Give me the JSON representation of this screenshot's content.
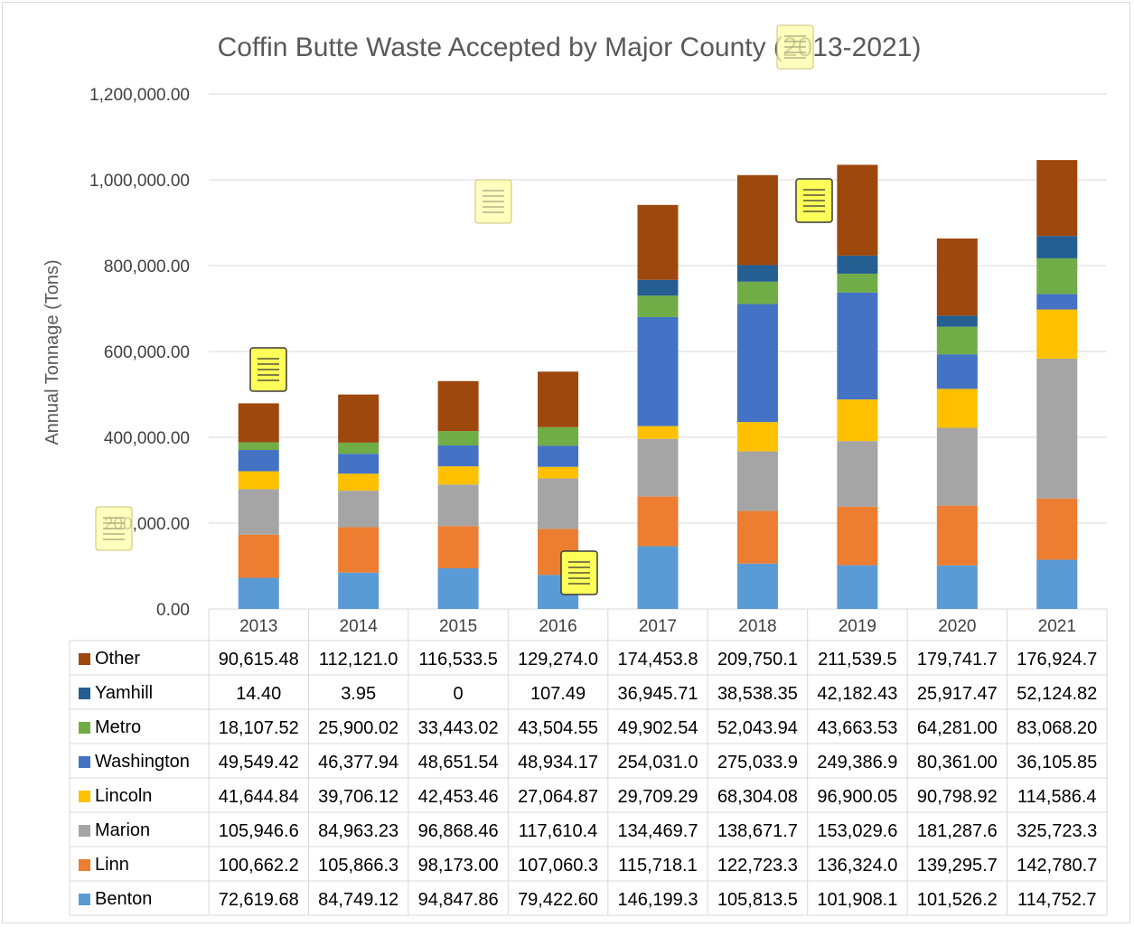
{
  "chart_data": {
    "type": "bar",
    "stacked": true,
    "title": "Coffin Butte Waste Accepted by Major County (2013-2021)",
    "ylabel": "Annual Tonnage (Tons)",
    "xlabel": "",
    "ylim": [
      0,
      1200000
    ],
    "yticks": [
      0,
      200000,
      400000,
      600000,
      800000,
      1000000,
      1200000
    ],
    "ytick_labels": [
      "0.00",
      "200,000.00",
      "400,000.00",
      "600,000.00",
      "800,000.00",
      "1,000,000.00",
      "1,200,000.00"
    ],
    "grid": true,
    "legend": "data-table",
    "categories": [
      "2013",
      "2014",
      "2015",
      "2016",
      "2017",
      "2018",
      "2019",
      "2020",
      "2021"
    ],
    "series": [
      {
        "name": "Benton",
        "color": "#5b9bd5",
        "values": [
          72619.68,
          84749.12,
          94847.86,
          79422.6,
          146199.3,
          105813.5,
          101908.1,
          101526.2,
          114752.7
        ],
        "labels": [
          "72,619.68",
          "84,749.12",
          "94,847.86",
          "79,422.60",
          "146,199.3",
          "105,813.5",
          "101,908.1",
          "101,526.2",
          "114,752.7"
        ]
      },
      {
        "name": "Linn",
        "color": "#ed7d31",
        "values": [
          100662.2,
          105866.3,
          98173.0,
          107060.3,
          115718.1,
          122723.3,
          136324.0,
          139295.7,
          142780.7
        ],
        "labels": [
          "100,662.2",
          "105,866.3",
          "98,173.00",
          "107,060.3",
          "115,718.1",
          "122,723.3",
          "136,324.0",
          "139,295.7",
          "142,780.7"
        ]
      },
      {
        "name": "Marion",
        "color": "#a5a5a5",
        "values": [
          105946.6,
          84963.23,
          96868.46,
          117610.4,
          134469.7,
          138671.7,
          153029.6,
          181287.6,
          325723.3
        ],
        "labels": [
          "105,946.6",
          "84,963.23",
          "96,868.46",
          "117,610.4",
          "134,469.7",
          "138,671.7",
          "153,029.6",
          "181,287.6",
          "325,723.3"
        ]
      },
      {
        "name": "Lincoln",
        "color": "#ffc000",
        "values": [
          41644.84,
          39706.12,
          42453.46,
          27064.87,
          29709.29,
          68304.08,
          96900.05,
          90798.92,
          114586.4
        ],
        "labels": [
          "41,644.84",
          "39,706.12",
          "42,453.46",
          "27,064.87",
          "29,709.29",
          "68,304.08",
          "96,900.05",
          "90,798.92",
          "114,586.4"
        ]
      },
      {
        "name": "Washington",
        "color": "#4472c4",
        "values": [
          49549.42,
          46377.94,
          48651.54,
          48934.17,
          254031.0,
          275033.9,
          249386.9,
          80361.0,
          36105.85
        ],
        "labels": [
          "49,549.42",
          "46,377.94",
          "48,651.54",
          "48,934.17",
          "254,031.0",
          "275,033.9",
          "249,386.9",
          "80,361.00",
          "36,105.85"
        ]
      },
      {
        "name": "Metro",
        "color": "#70ad47",
        "values": [
          18107.52,
          25900.02,
          33443.02,
          43504.55,
          49902.54,
          52043.94,
          43663.53,
          64281.0,
          83068.2
        ],
        "labels": [
          "18,107.52",
          "25,900.02",
          "33,443.02",
          "43,504.55",
          "49,902.54",
          "52,043.94",
          "43,663.53",
          "64,281.00",
          "83,068.20"
        ]
      },
      {
        "name": "Yamhill",
        "color": "#255e91",
        "values": [
          14.4,
          3.95,
          0,
          107.49,
          36945.71,
          38538.35,
          42182.43,
          25917.47,
          52124.82
        ],
        "labels": [
          "14.40",
          "3.95",
          "0",
          "107.49",
          "36,945.71",
          "38,538.35",
          "42,182.43",
          "25,917.47",
          "52,124.82"
        ]
      },
      {
        "name": "Other",
        "color": "#9e480e",
        "values": [
          90615.48,
          112121.0,
          116533.5,
          129274.0,
          174453.8,
          209750.1,
          211539.5,
          179741.7,
          176924.7
        ],
        "labels": [
          "90,615.48",
          "112,121.0",
          "116,533.5",
          "129,274.0",
          "174,453.8",
          "209,750.1",
          "211,539.5",
          "179,741.7",
          "176,924.7"
        ]
      }
    ],
    "table_row_order": [
      "Other",
      "Yamhill",
      "Metro",
      "Washington",
      "Lincoln",
      "Marion",
      "Linn",
      "Benton"
    ],
    "gridline_color": "#d9d9d9",
    "note_icons": [
      {
        "name": "comment-note-icon",
        "highlighted": true
      },
      {
        "name": "comment-note-icon",
        "highlighted": false
      },
      {
        "name": "comment-note-icon",
        "highlighted": true
      },
      {
        "name": "comment-note-icon",
        "highlighted": false
      },
      {
        "name": "comment-note-icon",
        "highlighted": false
      },
      {
        "name": "comment-note-icon",
        "highlighted": true
      }
    ]
  }
}
